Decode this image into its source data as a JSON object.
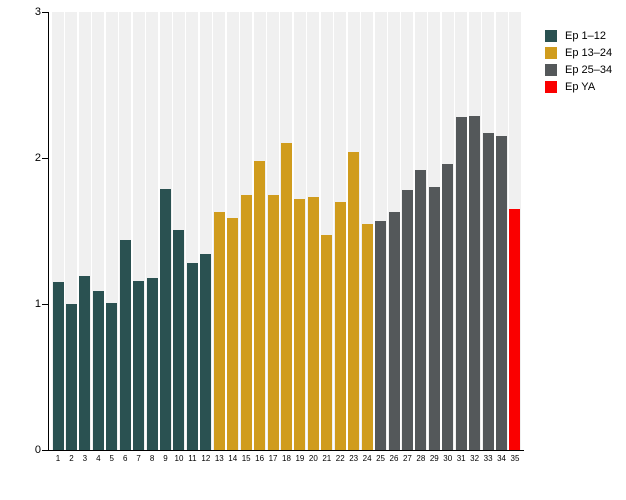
{
  "chart_data": {
    "type": "bar",
    "title": "",
    "xlabel": "",
    "ylabel": "",
    "ylim": [
      0,
      3
    ],
    "yticks": [
      "0",
      "1",
      "2",
      "3"
    ],
    "grid": false,
    "background_stripes": true,
    "stripe_color": "#f0f0f0",
    "axis_color": "#000000",
    "categories": [
      "1",
      "2",
      "3",
      "4",
      "5",
      "6",
      "7",
      "8",
      "9",
      "10",
      "11",
      "12",
      "13",
      "14",
      "15",
      "16",
      "17",
      "18",
      "19",
      "20",
      "21",
      "22",
      "23",
      "24",
      "25",
      "26",
      "27",
      "28",
      "29",
      "30",
      "31",
      "32",
      "33",
      "34",
      "35"
    ],
    "values": [
      1.15,
      1.0,
      1.19,
      1.09,
      1.01,
      1.44,
      1.16,
      1.18,
      1.79,
      1.51,
      1.28,
      1.34,
      1.63,
      1.59,
      1.75,
      1.98,
      1.75,
      2.1,
      1.72,
      1.73,
      1.47,
      1.7,
      2.04,
      1.55,
      1.57,
      1.63,
      1.78,
      1.92,
      1.8,
      1.96,
      2.28,
      2.29,
      2.17,
      2.15,
      1.65
    ],
    "groups": [
      {
        "label": "Ep 1–12",
        "color": "#2a5151",
        "range": [
          1,
          12
        ]
      },
      {
        "label": "Ep 13–24",
        "color": "#d09c1d",
        "range": [
          13,
          24
        ]
      },
      {
        "label": "Ep 25–34",
        "color": "#54585a",
        "range": [
          25,
          34
        ]
      },
      {
        "label": "Ep YA",
        "color": "#fa0000",
        "range": [
          35,
          35
        ]
      }
    ],
    "legend": {
      "position": "top-right",
      "entries": [
        {
          "label": "Ep 1–12",
          "color": "#2a5151"
        },
        {
          "label": "Ep 13–24",
          "color": "#d09c1d"
        },
        {
          "label": "Ep 25–34",
          "color": "#54585a"
        },
        {
          "label": "Ep YA",
          "color": "#fa0000"
        }
      ]
    }
  }
}
